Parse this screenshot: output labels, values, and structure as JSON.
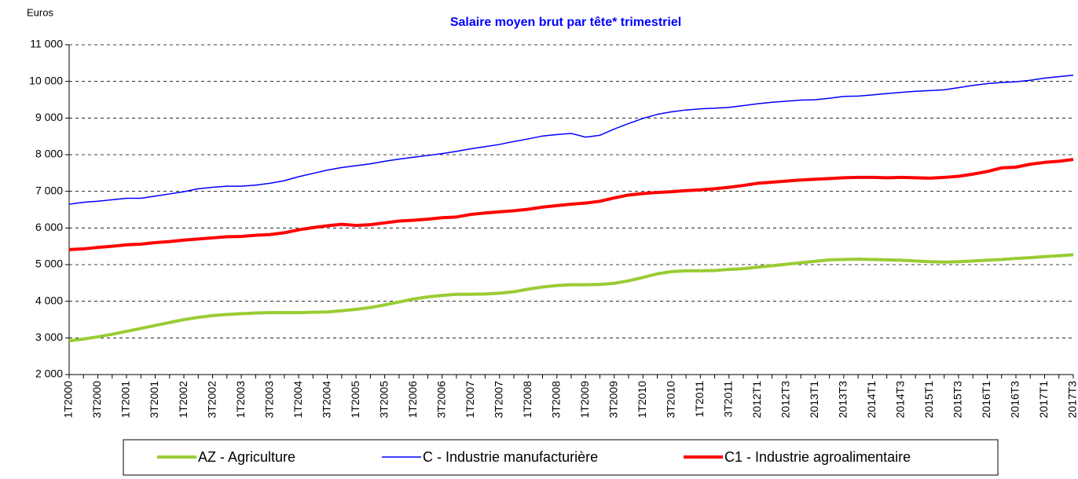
{
  "chart_data": {
    "type": "line",
    "title": "Salaire moyen brut par tête* trimestriel",
    "y_label": "Euros",
    "categories": [
      "1T2000",
      null,
      "3T2000",
      null,
      "1T2001",
      null,
      "3T2001",
      null,
      "1T2002",
      null,
      "3T2002",
      null,
      "1T2003",
      null,
      "3T2003",
      null,
      "1T2004",
      null,
      "3T2004",
      null,
      "1T2005",
      null,
      "3T2005",
      null,
      "1T2006",
      null,
      "3T2006",
      null,
      "1T2007",
      null,
      "3T2007",
      null,
      "1T2008",
      null,
      "3T2008",
      null,
      "1T2009",
      null,
      "3T2009",
      null,
      "1T2010",
      null,
      "3T2010",
      null,
      "1T2011",
      null,
      "3T2011",
      null,
      "2012T1",
      null,
      "2012T3",
      null,
      "2013T1",
      null,
      "2013T3",
      null,
      "2014T1",
      null,
      "2014T3",
      null,
      "2015T1",
      null,
      "2015T3",
      null,
      "2016T1",
      null,
      "2016T3",
      null,
      "2017T1",
      null,
      "2017T3"
    ],
    "series": [
      {
        "name": "AZ - Agriculture",
        "color": "#99cc33",
        "width": 4,
        "values": [
          2920,
          2970,
          3030,
          3100,
          3180,
          3260,
          3340,
          3420,
          3500,
          3560,
          3610,
          3640,
          3660,
          3680,
          3690,
          3690,
          3690,
          3700,
          3710,
          3740,
          3780,
          3830,
          3900,
          3980,
          4060,
          4120,
          4160,
          4190,
          4190,
          4200,
          4220,
          4260,
          4330,
          4390,
          4430,
          4450,
          4450,
          4460,
          4490,
          4560,
          4650,
          4750,
          4810,
          4830,
          4830,
          4840,
          4870,
          4890,
          4930,
          4970,
          5010,
          5050,
          5090,
          5130,
          5140,
          5150,
          5140,
          5130,
          5120,
          5100,
          5080,
          5070,
          5080,
          5100,
          5120,
          5140,
          5170,
          5190,
          5220,
          5240,
          5270
        ]
      },
      {
        "name": "C - Industrie manufacturière",
        "color": "#0000ff",
        "width": 1.5,
        "values": [
          6650,
          6700,
          6730,
          6770,
          6810,
          6810,
          6870,
          6930,
          6990,
          7070,
          7110,
          7140,
          7140,
          7170,
          7220,
          7290,
          7400,
          7490,
          7580,
          7650,
          7700,
          7750,
          7820,
          7880,
          7930,
          7980,
          8030,
          8090,
          8160,
          8220,
          8280,
          8360,
          8430,
          8510,
          8550,
          8580,
          8480,
          8530,
          8700,
          8850,
          8990,
          9100,
          9170,
          9220,
          9250,
          9270,
          9290,
          9340,
          9390,
          9430,
          9460,
          9490,
          9500,
          9540,
          9590,
          9600,
          9630,
          9670,
          9700,
          9730,
          9750,
          9770,
          9830,
          9890,
          9940,
          9970,
          9990,
          10030,
          10090,
          10130,
          10170
        ]
      },
      {
        "name": "C1 - Industrie agroalimentaire",
        "color": "#ff0000",
        "width": 4,
        "values": [
          5410,
          5430,
          5470,
          5500,
          5540,
          5560,
          5600,
          5630,
          5670,
          5700,
          5730,
          5760,
          5770,
          5800,
          5820,
          5870,
          5950,
          6010,
          6060,
          6100,
          6070,
          6090,
          6140,
          6190,
          6210,
          6240,
          6280,
          6300,
          6370,
          6410,
          6440,
          6470,
          6510,
          6570,
          6610,
          6650,
          6680,
          6730,
          6820,
          6900,
          6940,
          6970,
          6990,
          7020,
          7040,
          7070,
          7110,
          7160,
          7220,
          7250,
          7280,
          7310,
          7330,
          7350,
          7370,
          7380,
          7380,
          7370,
          7380,
          7370,
          7360,
          7380,
          7410,
          7470,
          7540,
          7640,
          7660,
          7740,
          7790,
          7820,
          7870
        ]
      }
    ],
    "ylim": [
      2000,
      11000
    ],
    "yticks": [
      {
        "value": 2000,
        "label": "2 000"
      },
      {
        "value": 3000,
        "label": "3 000"
      },
      {
        "value": 4000,
        "label": "4 000"
      },
      {
        "value": 5000,
        "label": "5 000"
      },
      {
        "value": 6000,
        "label": "6 000"
      },
      {
        "value": 7000,
        "label": "7 000"
      },
      {
        "value": 8000,
        "label": "8 000"
      },
      {
        "value": 9000,
        "label": "9 000"
      },
      {
        "value": 10000,
        "label": "10 000"
      },
      {
        "value": 11000,
        "label": "11 000"
      }
    ],
    "grid": true,
    "legend": "bottom"
  }
}
